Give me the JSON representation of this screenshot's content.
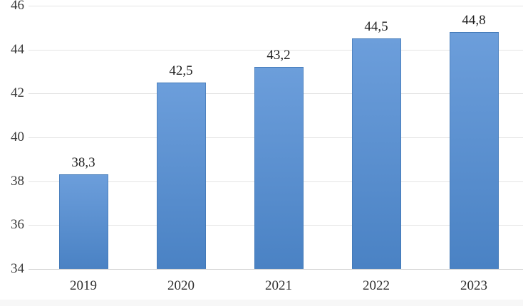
{
  "chart_data": {
    "type": "bar",
    "title": "",
    "xlabel": "",
    "ylabel": "",
    "categories": [
      "2019",
      "2020",
      "2021",
      "2022",
      "2023"
    ],
    "values": [
      38.3,
      42.5,
      43.2,
      44.5,
      44.8
    ],
    "value_labels": [
      "38,3",
      "42,5",
      "43,2",
      "44,5",
      "44,8"
    ],
    "ylim": [
      34,
      46
    ],
    "yticks": [
      34,
      36,
      38,
      40,
      42,
      44,
      46
    ],
    "ytick_labels": [
      "34",
      "36",
      "38",
      "40",
      "42",
      "44",
      "46"
    ],
    "grid": true,
    "legend": false,
    "decimal_separator": ",",
    "colors": {
      "bar_top": "#6c9edb",
      "bar_bottom": "#4a82c4",
      "bar_border": "#3e73af",
      "gridline": "#e4e4e4",
      "axis_line": "#d4d4d4",
      "value_label": "#1f1f1f",
      "tick_label": "#3a3a3a",
      "background": "#ffffff",
      "footer_strip": "#f7f7f7"
    }
  }
}
